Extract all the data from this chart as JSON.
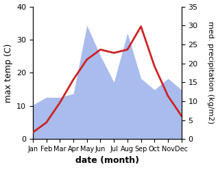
{
  "months": [
    "Jan",
    "Feb",
    "Mar",
    "Apr",
    "May",
    "Jun",
    "Jul",
    "Aug",
    "Sep",
    "Oct",
    "Nov",
    "Dec"
  ],
  "temp_max": [
    2,
    5,
    11,
    18,
    24,
    27,
    26,
    27,
    34,
    22,
    13,
    7
  ],
  "precipitation": [
    9,
    11,
    11,
    12,
    30,
    22,
    15,
    28,
    16,
    13,
    16,
    13
  ],
  "temp_ylim": [
    0,
    40
  ],
  "precip_ylim": [
    0,
    35
  ],
  "temp_color": "#cc2222",
  "precip_color": "#aabbee",
  "xlabel": "date (month)",
  "ylabel_left": "max temp (C)",
  "ylabel_right": "med. precipitation (kg/m2)",
  "bg_color": "#ffffff",
  "tick_fontsize": 8,
  "label_fontsize": 9,
  "ylabel_fontsize": 9
}
